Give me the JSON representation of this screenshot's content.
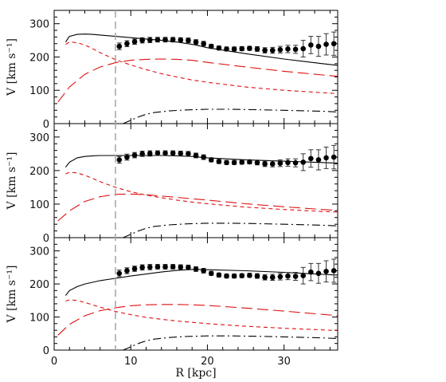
{
  "chart_data": {
    "type": "line",
    "panel_count": 3,
    "shared_x_axis": true,
    "xlabel": "R [kpc]",
    "xlim": [
      0,
      37
    ],
    "xticks": [
      0,
      10,
      20,
      30
    ],
    "ylabel": "V [km s⁻¹]",
    "ylim": [
      0,
      340
    ],
    "yticks": [
      0,
      100,
      200,
      300
    ],
    "reference_line": {
      "x": 8,
      "style": "dashed",
      "color": "#aaaaaa"
    },
    "observed": {
      "style": "filled circles with error bars",
      "color": "#000000",
      "points": [
        {
          "r": 8.5,
          "v": 232,
          "err": 10
        },
        {
          "r": 9.5,
          "v": 240,
          "err": 9
        },
        {
          "r": 10.5,
          "v": 246,
          "err": 8
        },
        {
          "r": 11.5,
          "v": 250,
          "err": 8
        },
        {
          "r": 12.5,
          "v": 251,
          "err": 8
        },
        {
          "r": 13.5,
          "v": 252,
          "err": 7
        },
        {
          "r": 14.5,
          "v": 252,
          "err": 7
        },
        {
          "r": 15.5,
          "v": 252,
          "err": 7
        },
        {
          "r": 16.5,
          "v": 251,
          "err": 7
        },
        {
          "r": 17.5,
          "v": 250,
          "err": 7
        },
        {
          "r": 18.5,
          "v": 245,
          "err": 7
        },
        {
          "r": 19.5,
          "v": 240,
          "err": 7
        },
        {
          "r": 20.5,
          "v": 232,
          "err": 6
        },
        {
          "r": 21.5,
          "v": 227,
          "err": 6
        },
        {
          "r": 22.5,
          "v": 224,
          "err": 6
        },
        {
          "r": 23.5,
          "v": 224,
          "err": 6
        },
        {
          "r": 24.5,
          "v": 225,
          "err": 6
        },
        {
          "r": 25.5,
          "v": 226,
          "err": 6
        },
        {
          "r": 26.5,
          "v": 224,
          "err": 7
        },
        {
          "r": 27.5,
          "v": 220,
          "err": 8
        },
        {
          "r": 28.5,
          "v": 220,
          "err": 9
        },
        {
          "r": 29.5,
          "v": 222,
          "err": 10
        },
        {
          "r": 30.5,
          "v": 224,
          "err": 11
        },
        {
          "r": 31.5,
          "v": 223,
          "err": 12
        },
        {
          "r": 32.5,
          "v": 225,
          "err": 25
        },
        {
          "r": 33.5,
          "v": 236,
          "err": 26
        },
        {
          "r": 34.5,
          "v": 232,
          "err": 30
        },
        {
          "r": 35.5,
          "v": 238,
          "err": 32
        },
        {
          "r": 36.5,
          "v": 240,
          "err": 35
        }
      ]
    },
    "panels": [
      {
        "series": [
          {
            "style": "solid",
            "color": "#000000",
            "x": [
              1.5,
              2,
              3,
              4,
              5,
              6,
              8,
              10,
              12,
              14,
              16,
              18,
              20,
              25,
              30,
              35,
              37
            ],
            "y": [
              245,
              262,
              268,
              269,
              268,
              266,
              262,
              258,
              254,
              250,
              245,
              238,
              228,
              210,
              194,
              180,
              175
            ]
          },
          {
            "style": "short-dashed",
            "color": "#dd1111",
            "x": [
              1.5,
              2,
              3,
              4,
              5,
              6,
              8,
              10,
              12,
              14,
              16,
              18,
              20,
              25,
              30,
              35,
              37
            ],
            "y": [
              238,
              245,
              243,
              236,
              225,
              213,
              192,
              176,
              162,
              150,
              140,
              131,
              124,
              110,
              100,
              93,
              90
            ]
          },
          {
            "style": "long-dashed",
            "color": "#dd1111",
            "x": [
              0.5,
              2,
              4,
              6,
              8,
              10,
              12,
              14,
              16,
              18,
              20,
              25,
              30,
              35,
              37
            ],
            "y": [
              65,
              110,
              148,
              170,
              183,
              190,
              193,
              194,
              193,
              190,
              184,
              170,
              157,
              146,
              142
            ]
          },
          {
            "style": "dash-dot",
            "color": "#000000",
            "x": [
              9,
              10,
              11,
              12,
              13,
              15,
              17,
              20,
              23,
              26,
              30,
              35,
              37
            ],
            "y": [
              0,
              10,
              20,
              28,
              33,
              38,
              41,
              43,
              43,
              42,
              40,
              37,
              35
            ]
          }
        ]
      },
      {
        "series": [
          {
            "style": "solid",
            "color": "#000000",
            "x": [
              1.5,
              2,
              3,
              4,
              5,
              6,
              8,
              10,
              12,
              14,
              16,
              18,
              20,
              25,
              30,
              35,
              37
            ],
            "y": [
              210,
              225,
              238,
              242,
              244,
              245,
              245,
              245,
              245,
              245,
              244,
              242,
              238,
              232,
              228,
              224,
              222
            ]
          },
          {
            "style": "short-dashed",
            "color": "#dd1111",
            "x": [
              1.5,
              2,
              3,
              4,
              5,
              6,
              8,
              10,
              12,
              14,
              16,
              18,
              20,
              25,
              30,
              35,
              37
            ],
            "y": [
              190,
              195,
              193,
              186,
              177,
              167,
              150,
              137,
              127,
              119,
              112,
              106,
              101,
              91,
              84,
              78,
              76
            ]
          },
          {
            "style": "long-dashed",
            "color": "#dd1111",
            "x": [
              0.5,
              2,
              4,
              6,
              8,
              10,
              12,
              14,
              16,
              18,
              20,
              25,
              30,
              35,
              37
            ],
            "y": [
              50,
              80,
              108,
              122,
              129,
              130,
              128,
              124,
              120,
              116,
              112,
              101,
              92,
              84,
              81
            ]
          },
          {
            "style": "dash-dot",
            "color": "#000000",
            "x": [
              9,
              10,
              11,
              12,
              13,
              15,
              17,
              20,
              23,
              26,
              30,
              35,
              37
            ],
            "y": [
              0,
              10,
              20,
              28,
              33,
              38,
              41,
              43,
              43,
              42,
              40,
              37,
              35
            ]
          }
        ]
      },
      {
        "series": [
          {
            "style": "solid",
            "color": "#000000",
            "x": [
              1.5,
              2,
              3,
              4,
              6,
              8,
              10,
              12,
              14,
              16,
              18,
              20,
              25,
              30,
              35,
              37
            ],
            "y": [
              165,
              180,
              192,
              200,
              210,
              217,
              224,
              230,
              236,
              241,
              244,
              243,
              240,
              235,
              229,
              227
            ]
          },
          {
            "style": "short-dashed",
            "color": "#dd1111",
            "x": [
              1.5,
              2,
              3,
              4,
              5,
              6,
              8,
              10,
              12,
              14,
              16,
              18,
              20,
              25,
              30,
              35,
              37
            ],
            "y": [
              148,
              152,
              150,
              144,
              137,
              130,
              117,
              107,
              99,
              93,
              88,
              84,
              80,
              72,
              66,
              61,
              59
            ]
          },
          {
            "style": "long-dashed",
            "color": "#dd1111",
            "x": [
              0.5,
              2,
              4,
              6,
              8,
              10,
              12,
              14,
              16,
              18,
              20,
              25,
              30,
              35,
              37
            ],
            "y": [
              45,
              78,
              104,
              119,
              128,
              134,
              137,
              138,
              138,
              137,
              135,
              127,
              118,
              108,
              104
            ]
          },
          {
            "style": "dash-dot",
            "color": "#000000",
            "x": [
              9,
              10,
              11,
              12,
              13,
              15,
              17,
              20,
              23,
              26,
              30,
              35,
              37
            ],
            "y": [
              0,
              10,
              20,
              28,
              33,
              38,
              41,
              43,
              43,
              42,
              40,
              37,
              35
            ]
          }
        ]
      }
    ]
  }
}
